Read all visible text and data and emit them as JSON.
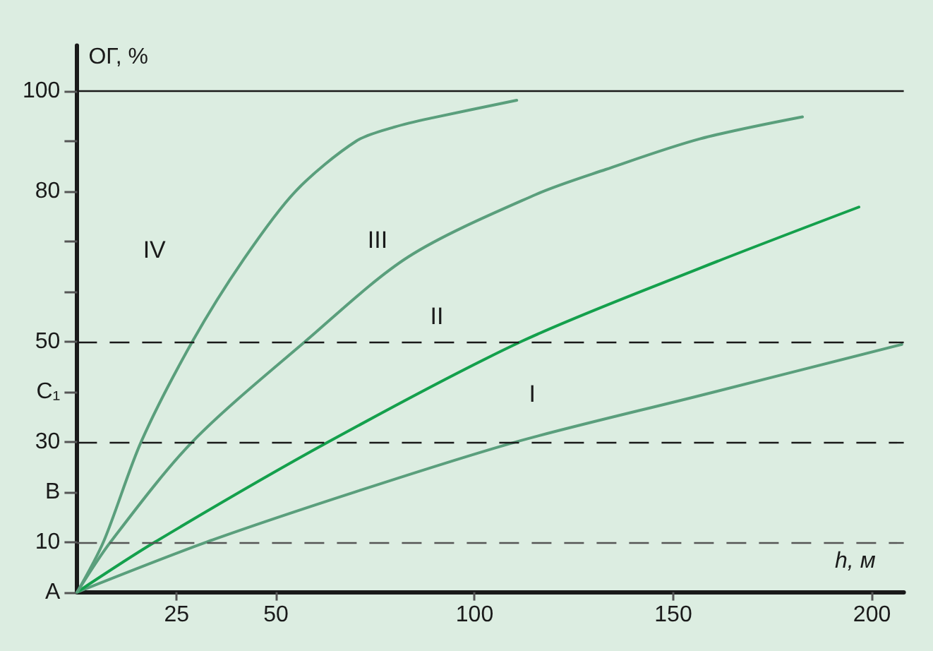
{
  "chart_data": {
    "type": "line",
    "xlabel": "h, м",
    "ylabel": "ОГ, %",
    "xlim": [
      0,
      208
    ],
    "xticks": [
      25,
      50,
      100,
      150,
      200
    ],
    "ylim": [
      0,
      109
    ],
    "yticks": [
      {
        "value": 0,
        "label": "A"
      },
      10,
      {
        "value": 20,
        "label": "B"
      },
      30,
      {
        "value": 40,
        "label": "C₁"
      },
      50,
      {
        "value": 60,
        "label": null
      },
      {
        "value": 70,
        "label": null
      },
      80,
      {
        "value": 90,
        "label": null
      },
      100
    ],
    "grid": false,
    "legend": false,
    "marker": "none",
    "line_style": "solid",
    "series": [
      {
        "name": "I",
        "color": "#5a9f7c",
        "x": [
          0,
          32.6,
          70,
          110.6,
          156.7,
          207.5
        ],
        "values": [
          0,
          10,
          20,
          30,
          39.2,
          49.4
        ]
      },
      {
        "name": "II",
        "color": "#14a04c",
        "x": [
          0,
          19.6,
          63.3,
          111.8,
          156.7,
          196.7
        ],
        "values": [
          0,
          10,
          30,
          50,
          64.6,
          76.8
        ]
      },
      {
        "name": "III",
        "color": "#5a9f7c",
        "x": [
          0,
          8.4,
          29,
          57.4,
          83.4,
          115.4,
          133,
          156.7,
          182.5
        ],
        "values": [
          0,
          10,
          30,
          50,
          66.9,
          79.3,
          84.3,
          90.4,
          94.8
        ]
      },
      {
        "name": "IV",
        "color": "#5a9f7c",
        "x": [
          0,
          6.6,
          16.1,
          29,
          42,
          55,
          70.3,
          80,
          89.4,
          110.6
        ],
        "values": [
          0,
          10,
          30,
          50,
          66.5,
          80,
          90,
          92.8,
          94.6,
          98.1
        ]
      }
    ],
    "ref_lines": [
      {
        "axis": "y",
        "value": 100,
        "color": "#1a1a1a",
        "line_style": "solid"
      },
      {
        "axis": "y",
        "value": 50,
        "color": "#1a1a1a",
        "line_style": "dashed"
      },
      {
        "axis": "y",
        "value": 30,
        "color": "#1a1a1a",
        "line_style": "dashed"
      },
      {
        "axis": "y",
        "value": 10,
        "color": "#555555",
        "line_style": "dashed"
      }
    ]
  }
}
